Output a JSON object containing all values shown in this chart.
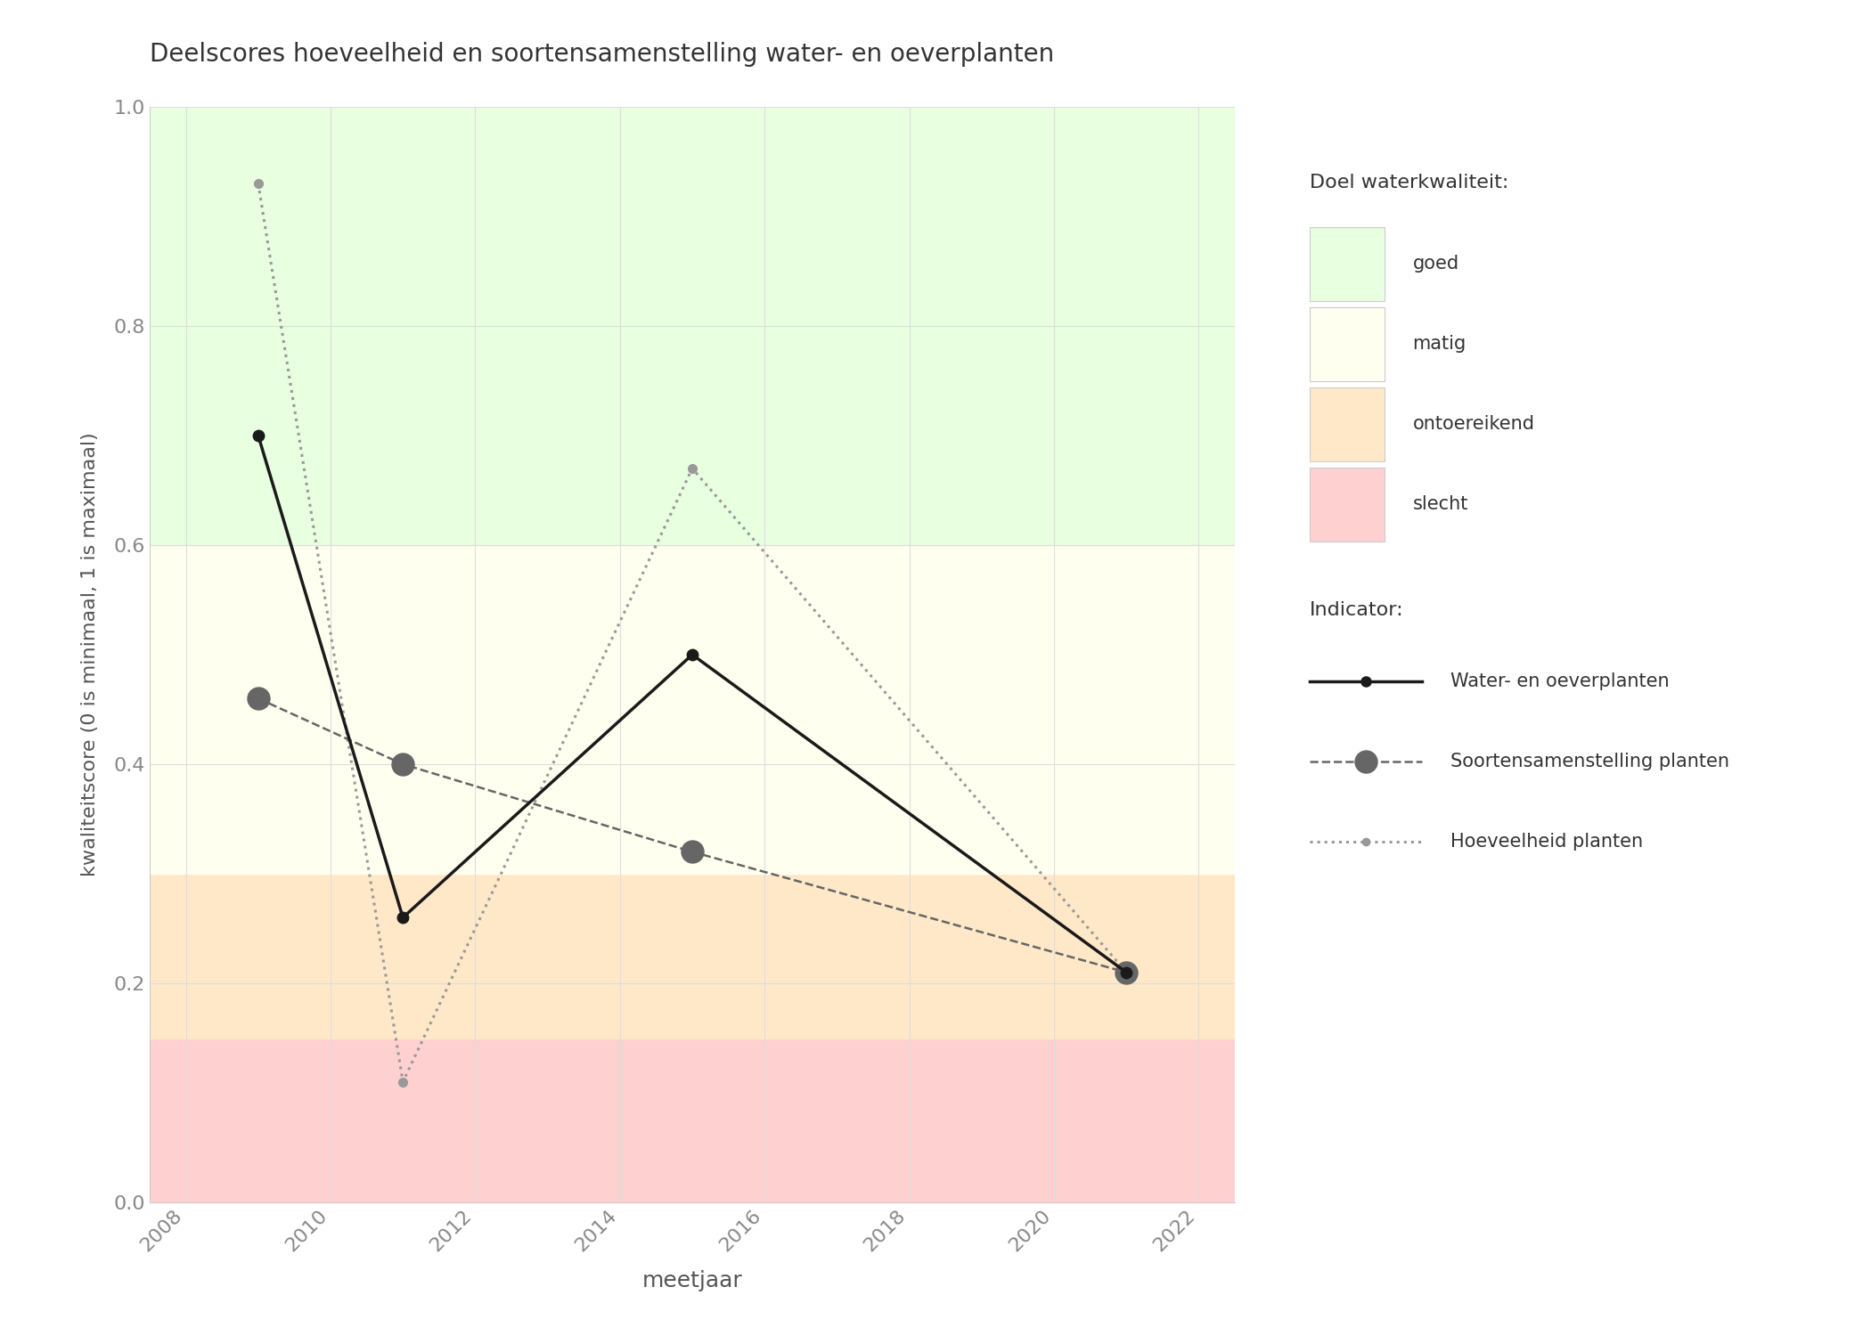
{
  "title": "Deelscores hoeveelheid en soortensamenstelling water- en oeverplanten",
  "xlabel": "meetjaar",
  "ylabel": "kwaliteitscore (0 is minimaal, 1 is maximaal)",
  "xlim": [
    2007.5,
    2022.5
  ],
  "ylim": [
    0.0,
    1.0
  ],
  "xticks": [
    2008,
    2010,
    2012,
    2014,
    2016,
    2018,
    2020,
    2022
  ],
  "yticks": [
    0.0,
    0.2,
    0.4,
    0.6,
    0.8,
    1.0
  ],
  "bg_bands": [
    {
      "ymin": 0.0,
      "ymax": 0.15,
      "color": "#FFD0D0",
      "label": "slecht"
    },
    {
      "ymin": 0.15,
      "ymax": 0.3,
      "color": "#FFE8C8",
      "label": "ontoereikend"
    },
    {
      "ymin": 0.3,
      "ymax": 0.6,
      "color": "#FFFFF0",
      "label": "matig"
    },
    {
      "ymin": 0.6,
      "ymax": 1.0,
      "color": "#E8FFE0",
      "label": "goed"
    }
  ],
  "series": [
    {
      "name": "Water- en oeverplanten",
      "x": [
        2009,
        2011,
        2015,
        2021
      ],
      "y": [
        0.7,
        0.26,
        0.5,
        0.21
      ],
      "color": "#1a1a1a",
      "linestyle": "solid",
      "linewidth": 2.5,
      "markersize": 9,
      "marker": "o",
      "markerfacecolor": "#1a1a1a",
      "zorder": 5
    },
    {
      "name": "Soortensamenstelling planten",
      "x": [
        2009,
        2011,
        2015,
        2021
      ],
      "y": [
        0.46,
        0.4,
        0.32,
        0.21
      ],
      "color": "#666666",
      "linestyle": "dashed",
      "linewidth": 1.8,
      "markersize": 18,
      "marker": "o",
      "markerfacecolor": "#666666",
      "zorder": 4
    },
    {
      "name": "Hoeveelheid planten",
      "x": [
        2009,
        2011,
        2015,
        2021
      ],
      "y": [
        0.93,
        0.11,
        0.67,
        0.21
      ],
      "color": "#999999",
      "linestyle": "dotted",
      "linewidth": 2.2,
      "markersize": 7,
      "marker": "o",
      "markerfacecolor": "#999999",
      "zorder": 3
    }
  ],
  "legend_title_quality": "Doel waterkwaliteit:",
  "legend_title_indicator": "Indicator:",
  "background_color": "#ffffff",
  "grid_color": "#dddddd",
  "figsize": [
    21.0,
    15.0
  ],
  "dpi": 100
}
